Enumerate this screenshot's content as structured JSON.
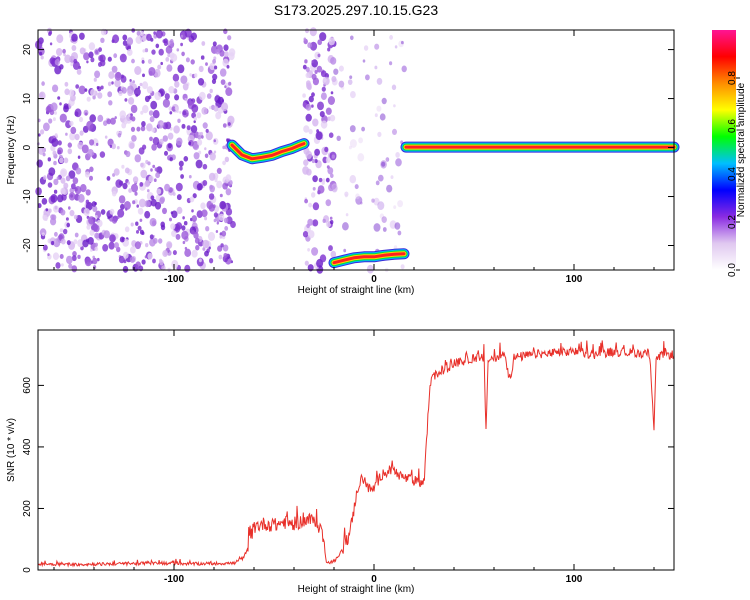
{
  "title": "S173.2025.297.10.15.G23",
  "chart_data": [
    {
      "type": "heatmap",
      "xlabel": "Height of straight line (km)",
      "ylabel": "Frequency (Hz)",
      "xlim": [
        -168,
        150
      ],
      "ylim": [
        -25,
        24
      ],
      "x_ticks": [
        "-100",
        "0",
        "100"
      ],
      "y_ticks": [
        "20",
        "10",
        "0",
        "-10",
        "-20"
      ],
      "colorbar": {
        "label": "Normalized spectral amplitude",
        "range": [
          0,
          1
        ],
        "ticks": [
          "0.0",
          "0.2",
          "0.4",
          "0.6",
          "0.8"
        ],
        "colors": [
          "#ffffff",
          "#e0c8f0",
          "#8a2be2",
          "#0000ff",
          "#00bfff",
          "#00ff00",
          "#ffff00",
          "#ff8c00",
          "#ff0000",
          "#ff1493"
        ]
      },
      "noise_segments_x": [
        [
          -168,
          -70
        ],
        [
          -35,
          -20
        ],
        [
          -20,
          16
        ]
      ],
      "ridge_segments": [
        {
          "x": [
            -71,
            -66,
            -61,
            -56,
            -51,
            -46,
            -41,
            -37,
            -35
          ],
          "y": [
            0.5,
            -1.5,
            -2.3,
            -2.0,
            -1.6,
            -0.8,
            -0.2,
            0.5,
            0.8
          ]
        },
        {
          "x": [
            -20,
            -15,
            -10,
            -5,
            0,
            5,
            10,
            15
          ],
          "y": [
            -23.5,
            -23.0,
            -22.5,
            -22.3,
            -22.3,
            -22.0,
            -21.8,
            -21.7
          ]
        },
        {
          "x": [
            16,
            40,
            70,
            100,
            130,
            150
          ],
          "y": [
            0.1,
            0.1,
            0.1,
            0.1,
            0.1,
            0.1
          ]
        }
      ]
    },
    {
      "type": "line",
      "xlabel": "Height of straight line (km)",
      "ylabel": "SNR (10 * v/v)",
      "xlim": [
        -168,
        150
      ],
      "ylim": [
        0,
        780
      ],
      "x_ticks": [
        "-100",
        "0",
        "100"
      ],
      "y_ticks": [
        "0",
        "200",
        "400",
        "600"
      ],
      "color": "#e8302a",
      "series": [
        {
          "x": [
            -168,
            -150,
            -130,
            -110,
            -90,
            -70,
            -65,
            -62,
            -60,
            -55,
            -50,
            -45,
            -40,
            -35,
            -30,
            -26,
            -24,
            -22,
            -20,
            -18,
            -15,
            -12,
            -10,
            -8,
            -6,
            -4,
            -2,
            0,
            2,
            5,
            10,
            15,
            20,
            25,
            27,
            28,
            30,
            35,
            40,
            45,
            50,
            55,
            56,
            57,
            60,
            65,
            68,
            70,
            80,
            90,
            100,
            110,
            120,
            130,
            138,
            140,
            141,
            142,
            145,
            150
          ],
          "y": [
            20,
            18,
            20,
            22,
            20,
            22,
            40,
            100,
            140,
            150,
            145,
            155,
            150,
            160,
            160,
            130,
            30,
            25,
            30,
            40,
            80,
            120,
            200,
            270,
            300,
            280,
            260,
            265,
            290,
            320,
            320,
            300,
            290,
            280,
            500,
            600,
            630,
            650,
            670,
            680,
            690,
            690,
            450,
            680,
            690,
            700,
            620,
            690,
            700,
            705,
            710,
            700,
            710,
            705,
            700,
            460,
            690,
            690,
            700,
            700
          ]
        }
      ]
    }
  ]
}
